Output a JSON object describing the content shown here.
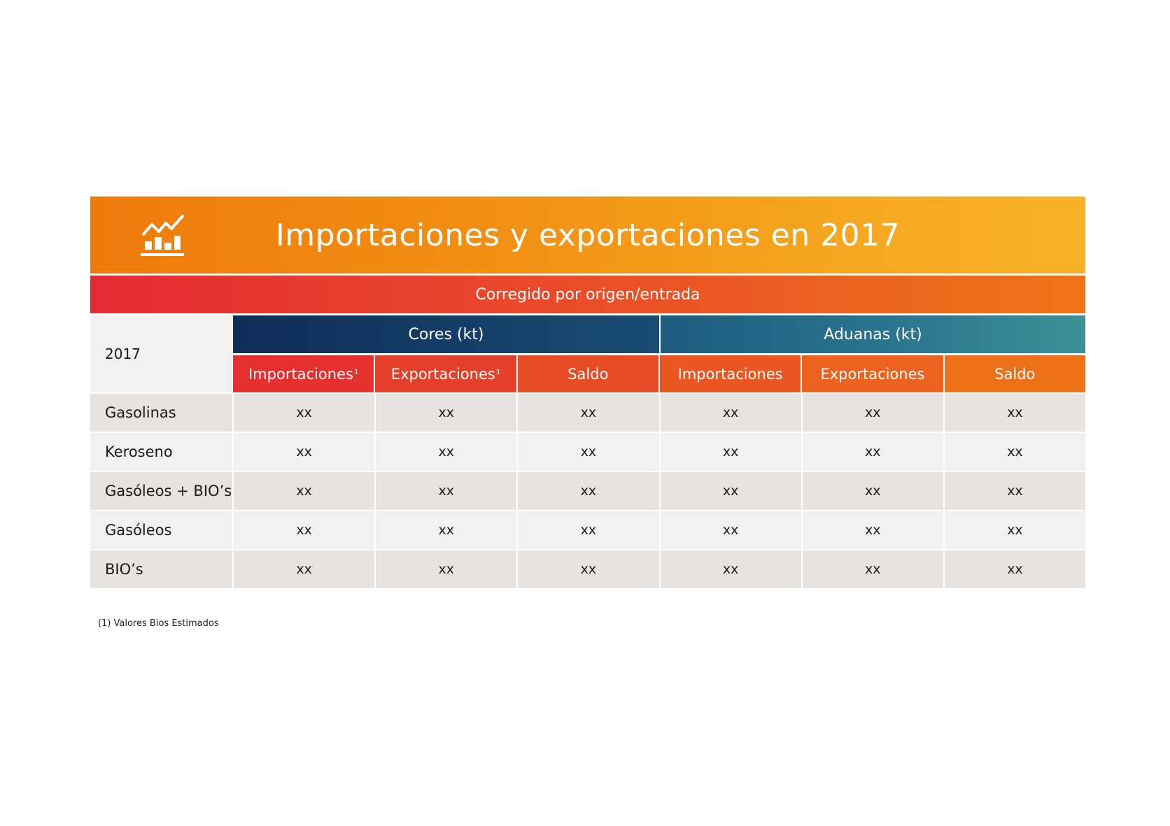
{
  "header": {
    "title": "Importaciones y exportaciones en 2017",
    "icon": "chart-growth-icon",
    "colors": {
      "title_start": "#ee7a0b",
      "title_end": "#f7b126"
    }
  },
  "subheader": {
    "label": "Corregido por origen/entrada",
    "colors": {
      "start": "#e52a33",
      "end": "#ef7418"
    }
  },
  "table": {
    "row_label_header": "2017",
    "groups": [
      {
        "label": "Cores (kt)",
        "color_start": "#0e2e59",
        "color_end": "#1a4c74"
      },
      {
        "label": "Aduanas (kt)",
        "color_start": "#1e5c80",
        "color_end": "#3d9197"
      }
    ],
    "columns": [
      {
        "label": "Importaciones",
        "footnote": "1",
        "color": "#e5302f"
      },
      {
        "label": "Exportaciones",
        "footnote": "1",
        "color": "#e6402b"
      },
      {
        "label": "Saldo",
        "footnote": "",
        "color": "#e84c27"
      },
      {
        "label": "Importaciones",
        "footnote": "",
        "color": "#ea5723"
      },
      {
        "label": "Exportaciones",
        "footnote": "",
        "color": "#ec621e"
      },
      {
        "label": "Saldo",
        "footnote": "",
        "color": "#ee7019"
      }
    ],
    "rows": [
      {
        "label": "Gasolinas",
        "values": [
          "xx",
          "xx",
          "xx",
          "xx",
          "xx",
          "xx"
        ]
      },
      {
        "label": "Keroseno",
        "values": [
          "xx",
          "xx",
          "xx",
          "xx",
          "xx",
          "xx"
        ]
      },
      {
        "label": "Gasóleos + BIO’s",
        "values": [
          "xx",
          "xx",
          "xx",
          "xx",
          "xx",
          "xx"
        ]
      },
      {
        "label": "Gasóleos",
        "values": [
          "xx",
          "xx",
          "xx",
          "xx",
          "xx",
          "xx"
        ]
      },
      {
        "label": "BIO’s",
        "values": [
          "xx",
          "xx",
          "xx",
          "xx",
          "xx",
          "xx"
        ]
      }
    ]
  },
  "footnote": "(1) Valores Bios Estimados"
}
